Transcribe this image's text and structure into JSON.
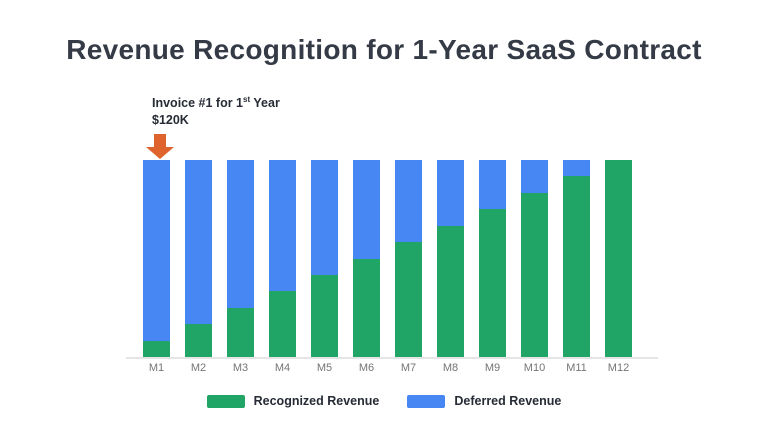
{
  "title": "Revenue Recognition for 1-Year SaaS Contract",
  "annotation": {
    "line1_pre": "Invoice #1 for 1",
    "line1_sup": "st",
    "line1_post": " Year",
    "line2": "$120K",
    "arrow_icon": "down-arrow"
  },
  "colors": {
    "recognized": "#21a567",
    "deferred": "#4787f3",
    "arrow": "#e0622c",
    "title_text": "#343a46",
    "legend_text": "#262b35",
    "axis_label": "#757575",
    "baseline": "#e5e5e5",
    "background": "#ffffff"
  },
  "legend": [
    {
      "label": "Recognized Revenue",
      "color_key": "recognized"
    },
    {
      "label": "Deferred Revenue",
      "color_key": "deferred"
    }
  ],
  "chart_data": {
    "type": "bar",
    "stacked": true,
    "title": "Revenue Recognition for 1-Year SaaS Contract",
    "categories": [
      "M1",
      "M2",
      "M3",
      "M4",
      "M5",
      "M6",
      "M7",
      "M8",
      "M9",
      "M10",
      "M11",
      "M12"
    ],
    "series": [
      {
        "name": "Recognized Revenue",
        "color": "#21a567",
        "values": [
          10,
          20,
          30,
          40,
          50,
          60,
          70,
          80,
          90,
          100,
          110,
          120
        ]
      },
      {
        "name": "Deferred Revenue",
        "color": "#4787f3",
        "values": [
          110,
          100,
          90,
          80,
          70,
          60,
          50,
          40,
          30,
          20,
          10,
          0
        ]
      }
    ],
    "value_unit": "$K",
    "total_per_bar": 120,
    "ylim": [
      0,
      120
    ],
    "xlabel": "",
    "ylabel": "",
    "grid": false,
    "y_axis_visible": false,
    "legend_position": "bottom",
    "annotation_text": "Invoice #1 for 1st Year $120K",
    "annotation_target": "M1"
  }
}
